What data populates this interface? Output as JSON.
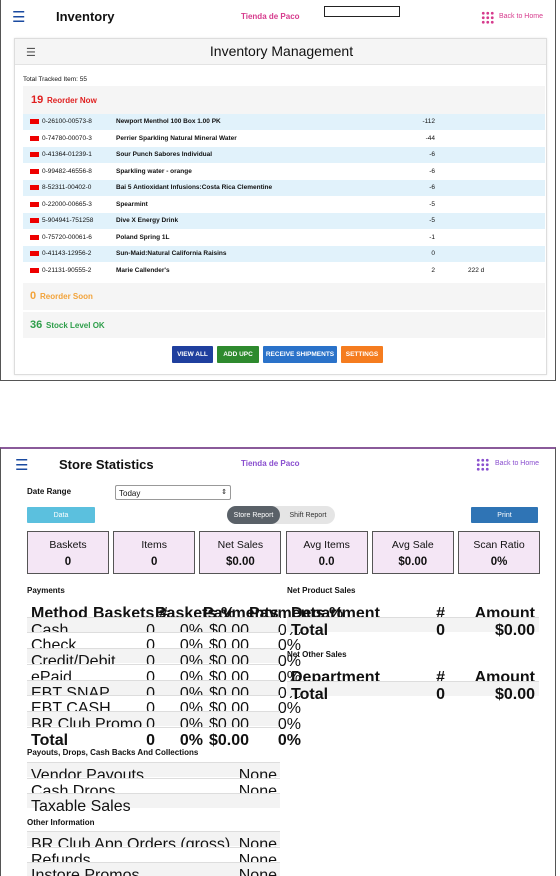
{
  "inventory": {
    "title": "Inventory",
    "store": "Tienda de Paco",
    "back": "Back to Home",
    "heading": "Inventory Management",
    "total": "Total Tracked Item: 55",
    "reorder_now": {
      "count": "19",
      "label": "Reorder Now"
    },
    "rows": [
      {
        "upc": "0-26100-00573-8",
        "name": "Newport Menthol 100 Box 1.00 PK",
        "qty": "-112",
        "extra": ""
      },
      {
        "upc": "0-74780-00070-3",
        "name": "Perrier Sparkling Natural Mineral Water",
        "qty": "-44",
        "extra": ""
      },
      {
        "upc": "0-41364-01239-1",
        "name": "Sour Punch Sabores Individual",
        "qty": "-6",
        "extra": ""
      },
      {
        "upc": "0-99482-46556-8",
        "name": "Sparkling water - orange",
        "qty": "-6",
        "extra": ""
      },
      {
        "upc": "8-52311-00402-0",
        "name": "Bai 5 Antioxidant Infusions:Costa Rica Clementine",
        "qty": "-6",
        "extra": ""
      },
      {
        "upc": "0-22000-00665-3",
        "name": "Spearmint",
        "qty": "-5",
        "extra": ""
      },
      {
        "upc": "5-904941-751258",
        "name": "Dive X Energy Drink",
        "qty": "-5",
        "extra": ""
      },
      {
        "upc": "0-75720-00061-6",
        "name": "Poland Spring 1L",
        "qty": "-1",
        "extra": ""
      },
      {
        "upc": "0-41143-12956-2",
        "name": "Sun-Maid:Natural California Raisins",
        "qty": "0",
        "extra": ""
      },
      {
        "upc": "0-21131-90555-2",
        "name": "Marie Callender's",
        "qty": "2",
        "extra": "222 d"
      }
    ],
    "reorder_soon": {
      "count": "0",
      "label": "Reorder Soon"
    },
    "stock_ok": {
      "count": "36",
      "label": "Stock Level OK"
    },
    "buttons": {
      "view_all": "VIEW ALL",
      "add_upc": "ADD UPC",
      "receive": "RECEIVE SHIPMENTS",
      "settings": "SETTINGS"
    }
  },
  "stats": {
    "title": "Store Statistics",
    "store": "Tienda de Paco",
    "back": "Back to Home",
    "date_range_label": "Date Range",
    "date_range_value": "Today",
    "data_btn": "Data",
    "store_report": "Store Report",
    "shift_report": "Shift Report",
    "print": "Print",
    "cards": [
      {
        "label": "Baskets",
        "value": "0"
      },
      {
        "label": "Items",
        "value": "0"
      },
      {
        "label": "Net Sales",
        "value": "$0.00"
      },
      {
        "label": "Avg Items",
        "value": "0.0"
      },
      {
        "label": "Avg Sale",
        "value": "$0.00"
      },
      {
        "label": "Scan Ratio",
        "value": "0%"
      }
    ],
    "payments": {
      "title": "Payments",
      "headers": [
        "Method",
        "Baskets #",
        "Baskets %",
        "Payments",
        "Payments %"
      ],
      "rows": [
        [
          "Cash",
          "0",
          "0%",
          "$0.00",
          "0%"
        ],
        [
          "Check",
          "0",
          "0%",
          "$0.00",
          "0%"
        ],
        [
          "Credit/Debit",
          "0",
          "0%",
          "$0.00",
          "0%"
        ],
        [
          "ePaid",
          "0",
          "0%",
          "$0.00",
          "0%"
        ],
        [
          "EBT SNAP",
          "0",
          "0%",
          "$0.00",
          "0%"
        ],
        [
          "EBT CASH",
          "0",
          "0%",
          "$0.00",
          "0%"
        ],
        [
          "BR Club Promo",
          "0",
          "0%",
          "$0.00",
          "0%"
        ],
        [
          "Total",
          "0",
          "0%",
          "$0.00",
          "0%"
        ]
      ]
    },
    "payouts": {
      "title": "Payouts, Drops, Cash Backs And Collections",
      "rows": [
        [
          "Vendor Payouts",
          "None"
        ],
        [
          "Cash Drops",
          "None"
        ],
        [
          "Taxable Sales",
          ""
        ]
      ]
    },
    "other": {
      "title": "Other Information",
      "rows": [
        [
          "BR Club App Orders (gross)",
          "None"
        ],
        [
          "Refunds",
          "None"
        ],
        [
          "Instore Promos",
          "None"
        ]
      ]
    },
    "net_product": {
      "title": "Net Product Sales",
      "headers": [
        "Department",
        "#",
        "Amount"
      ],
      "rows": [
        [
          "Total",
          "0",
          "$0.00"
        ]
      ]
    },
    "net_other": {
      "title": "Net Other Sales",
      "headers": [
        "Department",
        "#",
        "Amount"
      ],
      "rows": [
        [
          "Total",
          "0",
          "$0.00"
        ]
      ]
    }
  }
}
